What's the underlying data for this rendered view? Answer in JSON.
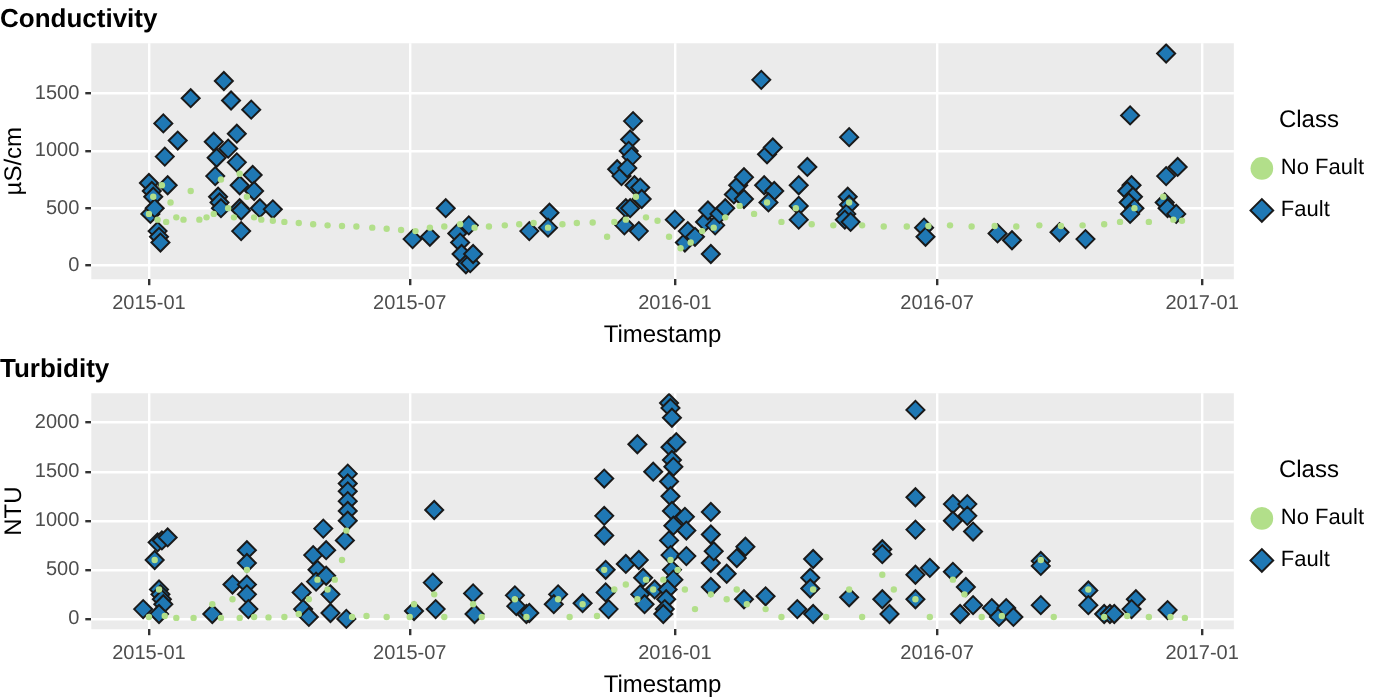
{
  "chart_data": [
    {
      "type": "scatter",
      "title": "Conductivity",
      "xlabel": "Timestamp",
      "ylabel": "µS/cm",
      "legend_title": "Class",
      "legend": "right",
      "grid": true,
      "xlim": [
        "2014-11-22",
        "2017-01-23"
      ],
      "xticks": [
        "2015-01",
        "2015-07",
        "2016-01",
        "2016-07",
        "2017-01"
      ],
      "ylim": [
        -120,
        1940
      ],
      "yticks": [
        0,
        500,
        1000,
        1500
      ],
      "series": [
        {
          "name": "Fault",
          "color": "#1f78b4",
          "marker": "diamond",
          "x": [
            "2015-01-01",
            "2015-01-02",
            "2015-01-03",
            "2015-01-04",
            "2015-01-05",
            "2015-01-07",
            "2015-01-08",
            "2015-01-09",
            "2015-01-11",
            "2015-01-12",
            "2015-01-21",
            "2015-01-14",
            "2015-01-30",
            "2015-02-15",
            "2015-02-22",
            "2015-02-17",
            "2015-02-16",
            "2015-02-18",
            "2015-02-19",
            "2015-02-20",
            "2015-02-25",
            "2015-02-27",
            "2015-03-03",
            "2015-03-03",
            "2015-03-05",
            "2015-03-05",
            "2015-03-06",
            "2015-03-06",
            "2015-03-13",
            "2015-03-14",
            "2015-03-15",
            "2015-03-19",
            "2015-03-28",
            "2015-07-03",
            "2015-07-15",
            "2015-07-26",
            "2015-08-03",
            "2015-08-05",
            "2015-08-06",
            "2015-08-09",
            "2015-08-12",
            "2015-08-14",
            "2015-08-11",
            "2015-09-22",
            "2015-10-06",
            "2015-10-05",
            "2015-11-22",
            "2015-11-25",
            "2015-12-03",
            "2015-12-01",
            "2015-11-30",
            "2015-12-02",
            "2015-11-29",
            "2015-12-04",
            "2015-11-28",
            "2015-11-27",
            "2015-12-07",
            "2015-12-08",
            "2015-12-09",
            "2015-12-01",
            "2016-01-01",
            "2016-01-08",
            "2016-01-10",
            "2016-01-15",
            "2016-01-22",
            "2016-01-24",
            "2016-01-26",
            "2016-01-29",
            "2016-02-01",
            "2016-02-05",
            "2016-02-11",
            "2016-02-14",
            "2016-02-18",
            "2016-02-18",
            "2016-03-01",
            "2016-03-05",
            "2016-03-09",
            "2016-03-03",
            "2016-03-10",
            "2016-03-06",
            "2016-03-27",
            "2016-04-02",
            "2016-03-27",
            "2016-03-27",
            "2016-05-01",
            "2016-04-30",
            "2016-05-01",
            "2016-04-29",
            "2016-04-28",
            "2016-05-02",
            "2016-06-22",
            "2016-06-23",
            "2016-08-12",
            "2016-08-22",
            "2016-09-24",
            "2016-10-12",
            "2016-11-12",
            "2016-11-13",
            "2016-11-10",
            "2016-11-14",
            "2016-11-11",
            "2016-11-15",
            "2016-11-12",
            "2016-12-07",
            "2016-12-15",
            "2016-12-07",
            "2016-12-06",
            "2016-12-08",
            "2016-12-14"
          ],
          "values": [
            720,
            450,
            650,
            600,
            500,
            300,
            250,
            200,
            1240,
            950,
            1090,
            700,
            1460,
            1080,
            1610,
            940,
            780,
            600,
            550,
            500,
            1020,
            1440,
            1150,
            900,
            700,
            500,
            300,
            480,
            1360,
            790,
            650,
            500,
            490,
            230,
            250,
            500,
            280,
            200,
            100,
            10,
            20,
            100,
            350,
            300,
            460,
            330,
            840,
            780,
            1260,
            1100,
            1000,
            950,
            850,
            700,
            500,
            350,
            300,
            680,
            580,
            500,
            400,
            200,
            300,
            250,
            380,
            480,
            100,
            350,
            450,
            500,
            620,
            700,
            770,
            580,
            1620,
            970,
            1030,
            700,
            650,
            550,
            700,
            860,
            520,
            400,
            1120,
            600,
            530,
            450,
            400,
            380,
            330,
            250,
            280,
            220,
            290,
            230,
            1310,
            700,
            650,
            600,
            550,
            500,
            450,
            1850,
            860,
            780,
            550,
            500,
            450
          ]
        },
        {
          "name": "No Fault",
          "color": "#b2df8a",
          "marker": "circle",
          "x": [
            "2015-01-01",
            "2015-01-04",
            "2015-01-07",
            "2015-01-10",
            "2015-01-13",
            "2015-01-16",
            "2015-01-20",
            "2015-01-25",
            "2015-01-30",
            "2015-02-05",
            "2015-02-10",
            "2015-02-15",
            "2015-02-20",
            "2015-02-25",
            "2015-03-01",
            "2015-03-05",
            "2015-03-10",
            "2015-03-15",
            "2015-03-20",
            "2015-03-28",
            "2015-04-05",
            "2015-04-15",
            "2015-04-25",
            "2015-05-05",
            "2015-05-15",
            "2015-05-25",
            "2015-06-05",
            "2015-06-15",
            "2015-06-25",
            "2015-07-05",
            "2015-07-15",
            "2015-07-25",
            "2015-08-05",
            "2015-08-15",
            "2015-08-25",
            "2015-09-05",
            "2015-09-15",
            "2015-09-25",
            "2015-10-05",
            "2015-10-15",
            "2015-10-25",
            "2015-11-05",
            "2015-11-15",
            "2015-11-20",
            "2015-11-28",
            "2015-12-05",
            "2015-12-12",
            "2015-12-20",
            "2015-12-28",
            "2016-01-05",
            "2016-01-12",
            "2016-01-20",
            "2016-01-28",
            "2016-02-05",
            "2016-02-15",
            "2016-02-25",
            "2016-03-05",
            "2016-03-15",
            "2016-03-25",
            "2016-04-05",
            "2016-04-20",
            "2016-05-01",
            "2016-05-10",
            "2016-05-25",
            "2016-06-10",
            "2016-06-25",
            "2016-07-10",
            "2016-07-25",
            "2016-08-10",
            "2016-08-25",
            "2016-09-10",
            "2016-09-25",
            "2016-10-10",
            "2016-10-25",
            "2016-11-05",
            "2016-11-15",
            "2016-11-25",
            "2016-12-05",
            "2016-12-12",
            "2016-12-18"
          ],
          "values": [
            450,
            600,
            400,
            700,
            380,
            550,
            420,
            400,
            650,
            400,
            420,
            450,
            750,
            500,
            420,
            800,
            600,
            420,
            400,
            390,
            380,
            370,
            360,
            350,
            345,
            340,
            330,
            320,
            310,
            300,
            330,
            340,
            360,
            330,
            340,
            350,
            360,
            370,
            330,
            360,
            370,
            375,
            250,
            380,
            400,
            600,
            420,
            390,
            250,
            150,
            200,
            300,
            330,
            420,
            520,
            450,
            550,
            380,
            500,
            360,
            350,
            550,
            350,
            340,
            340,
            345,
            350,
            340,
            345,
            340,
            350,
            345,
            350,
            360,
            380,
            500,
            380,
            600,
            400,
            390
          ]
        }
      ]
    },
    {
      "type": "scatter",
      "title": "Turbidity",
      "xlabel": "Timestamp",
      "ylabel": "NTU",
      "legend_title": "Class",
      "legend": "right",
      "grid": true,
      "xlim": [
        "2014-11-22",
        "2017-01-23"
      ],
      "xticks": [
        "2015-01",
        "2015-07",
        "2016-01",
        "2016-07",
        "2017-01"
      ],
      "ylim": [
        -105,
        2300
      ],
      "yticks": [
        0,
        500,
        1000,
        1500,
        2000
      ],
      "series": [
        {
          "name": "Fault",
          "color": "#1f78b4",
          "marker": "diamond",
          "x": [
            "2014-12-28",
            "2015-01-05",
            "2015-01-07",
            "2015-01-10",
            "2015-01-14",
            "2015-01-08",
            "2015-01-09",
            "2015-01-10",
            "2015-01-11",
            "2015-01-08",
            "2015-02-14",
            "2015-02-28",
            "2015-03-10",
            "2015-03-10",
            "2015-03-10",
            "2015-03-10",
            "2015-03-11",
            "2015-04-17",
            "2015-04-18",
            "2015-04-22",
            "2015-04-25",
            "2015-05-04",
            "2015-05-02",
            "2015-04-28",
            "2015-04-27",
            "2015-05-04",
            "2015-05-07",
            "2015-05-07",
            "2015-05-19",
            "2015-05-19",
            "2015-05-19",
            "2015-05-19",
            "2015-05-19",
            "2015-05-19",
            "2015-05-17",
            "2015-05-18",
            "2015-07-04",
            "2015-07-18",
            "2015-07-17",
            "2015-07-19",
            "2015-08-14",
            "2015-08-15",
            "2015-09-12",
            "2015-09-13",
            "2015-09-20",
            "2015-09-22",
            "2015-10-12",
            "2015-10-09",
            "2015-10-29",
            "2015-11-13",
            "2015-11-13",
            "2015-11-13",
            "2015-11-14",
            "2015-11-14",
            "2015-11-16",
            "2015-11-28",
            "2015-12-06",
            "2015-12-07",
            "2015-12-10",
            "2015-12-08",
            "2015-12-11",
            "2015-12-17",
            "2015-12-18",
            "2015-12-28",
            "2015-12-29",
            "2015-12-30",
            "2015-12-29",
            "2015-12-30",
            "2015-12-31",
            "2015-12-28",
            "2015-12-29",
            "2015-12-30",
            "2015-12-31",
            "2015-12-28",
            "2015-12-29",
            "2015-12-30",
            "2015-12-31",
            "2015-12-27",
            "2015-12-26",
            "2015-12-25",
            "2015-12-24",
            "2016-01-02",
            "2016-01-08",
            "2016-01-09",
            "2016-01-09",
            "2016-01-26",
            "2016-01-26",
            "2016-01-26",
            "2016-01-26",
            "2016-01-28",
            "2016-02-06",
            "2016-02-13",
            "2016-02-19",
            "2016-03-04",
            "2016-02-18",
            "2016-04-06",
            "2016-04-04",
            "2016-04-04",
            "2016-04-06",
            "2016-03-26",
            "2016-05-01",
            "2016-05-24",
            "2016-05-24",
            "2016-05-24",
            "2016-05-29",
            "2016-06-16",
            "2016-06-16",
            "2016-06-16",
            "2016-06-16",
            "2016-06-16",
            "2016-06-26",
            "2016-07-12",
            "2016-07-22",
            "2016-07-12",
            "2016-07-22",
            "2016-07-26",
            "2016-07-12",
            "2016-07-21",
            "2016-07-17",
            "2016-07-26",
            "2016-08-08",
            "2016-08-13",
            "2016-08-18",
            "2016-08-23",
            "2016-09-11",
            "2016-09-11",
            "2016-09-11",
            "2016-10-14",
            "2016-10-14",
            "2016-10-25",
            "2016-10-29",
            "2016-11-01",
            "2016-11-16",
            "2016-11-13",
            "2016-12-08"
          ],
          "values": [
            100,
            600,
            780,
            800,
            830,
            300,
            250,
            200,
            150,
            50,
            50,
            350,
            700,
            570,
            350,
            250,
            100,
            270,
            100,
            20,
            650,
            700,
            920,
            500,
            380,
            440,
            250,
            60,
            1480,
            1380,
            1300,
            1200,
            1100,
            1000,
            800,
            0,
            80,
            1110,
            370,
            100,
            260,
            50,
            240,
            130,
            50,
            60,
            250,
            150,
            160,
            1430,
            1050,
            850,
            500,
            270,
            100,
            560,
            1780,
            600,
            420,
            250,
            150,
            1500,
            300,
            2200,
            2150,
            2050,
            1750,
            1620,
            1550,
            1400,
            1250,
            1100,
            950,
            800,
            650,
            500,
            400,
            300,
            200,
            100,
            50,
            1800,
            1040,
            900,
            640,
            1090,
            860,
            570,
            325,
            690,
            460,
            620,
            735,
            230,
            200,
            610,
            420,
            310,
            50,
            100,
            220,
            710,
            660,
            200,
            50,
            2130,
            1240,
            910,
            450,
            200,
            520,
            1170,
            1170,
            1000,
            1050,
            890,
            480,
            325,
            50,
            140,
            110,
            20,
            110,
            20,
            590,
            540,
            140,
            290,
            140,
            50,
            50,
            50,
            200,
            100,
            90
          ]
        },
        {
          "name": "No Fault",
          "color": "#b2df8a",
          "marker": "circle",
          "x": [
            "2015-01-01",
            "2015-01-05",
            "2015-01-08",
            "2015-01-12",
            "2015-01-20",
            "2015-02-01",
            "2015-02-14",
            "2015-02-20",
            "2015-02-28",
            "2015-03-05",
            "2015-03-10",
            "2015-03-15",
            "2015-03-25",
            "2015-04-05",
            "2015-04-15",
            "2015-04-22",
            "2015-04-28",
            "2015-05-05",
            "2015-05-10",
            "2015-05-15",
            "2015-05-18",
            "2015-05-22",
            "2015-06-01",
            "2015-06-15",
            "2015-07-01",
            "2015-07-04",
            "2015-07-18",
            "2015-07-25",
            "2015-08-14",
            "2015-08-20",
            "2015-09-12",
            "2015-09-20",
            "2015-10-12",
            "2015-10-20",
            "2015-10-29",
            "2015-11-08",
            "2015-11-13",
            "2015-11-20",
            "2015-11-28",
            "2015-12-06",
            "2015-12-12",
            "2015-12-17",
            "2015-12-24",
            "2015-12-29",
            "2016-01-03",
            "2016-01-08",
            "2016-01-15",
            "2016-01-26",
            "2016-02-06",
            "2016-02-13",
            "2016-02-20",
            "2016-03-04",
            "2016-03-15",
            "2016-04-06",
            "2016-04-15",
            "2016-05-01",
            "2016-05-10",
            "2016-05-24",
            "2016-06-01",
            "2016-06-16",
            "2016-06-26",
            "2016-07-12",
            "2016-07-20",
            "2016-08-01",
            "2016-08-15",
            "2016-09-11",
            "2016-09-20",
            "2016-10-14",
            "2016-10-25",
            "2016-11-10",
            "2016-11-25",
            "2016-12-10",
            "2016-12-20"
          ],
          "values": [
            20,
            600,
            300,
            30,
            10,
            10,
            150,
            10,
            200,
            10,
            500,
            20,
            15,
            20,
            50,
            200,
            400,
            300,
            400,
            600,
            900,
            20,
            30,
            20,
            20,
            150,
            250,
            20,
            150,
            20,
            200,
            20,
            200,
            20,
            150,
            30,
            500,
            300,
            350,
            200,
            400,
            300,
            400,
            600,
            500,
            300,
            100,
            250,
            200,
            300,
            150,
            100,
            20,
            300,
            20,
            300,
            20,
            450,
            300,
            200,
            20,
            400,
            250,
            20,
            30,
            600,
            20,
            300,
            20,
            30,
            20,
            20,
            10
          ]
        }
      ]
    }
  ]
}
